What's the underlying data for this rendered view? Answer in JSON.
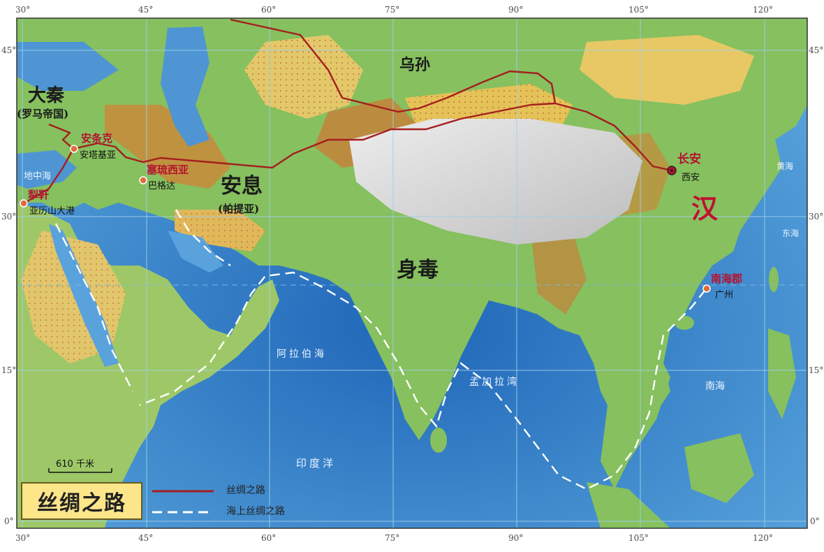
{
  "map": {
    "title": "丝绸之路",
    "legend": [
      {
        "label": "丝绸之路",
        "style": "solid",
        "color": "#a51e1e"
      },
      {
        "label": "海上丝绸之路",
        "style": "dashed",
        "color": "#ffffff"
      }
    ],
    "scale_bar": "610 千米",
    "longitude_ticks": [
      "30°",
      "45°",
      "60°",
      "75°",
      "90°",
      "105°",
      "120°"
    ],
    "latitude_ticks": [
      "45°",
      "30°",
      "15°",
      "0°"
    ],
    "empires": {
      "daqin": "大秦",
      "daqin_sub": "(罗马帝国)",
      "wusun": "乌孙",
      "anxi": "安息",
      "anxi_sub": "(帕提亚)",
      "shendu": "身毒",
      "han": "汉"
    },
    "cities": {
      "anchao": "安条克",
      "anchao_modern": "安塔基亚",
      "sailiu": "塞琉西亚",
      "sailiu_modern": "巴格达",
      "lixuan": "犁靬",
      "lixuan_modern": "亚历山大港",
      "changan": "长安",
      "changan_modern": "西安",
      "nanhai": "南海郡",
      "nanhai_modern": "广州"
    },
    "seas": {
      "mediterranean": "地中海",
      "arabian": "阿拉伯海",
      "bengal": "孟加拉湾",
      "indian": "印度洋",
      "south_china": "南海",
      "yellow": "黄海",
      "east_china": "东海"
    },
    "colors": {
      "ocean": "#3f86c9",
      "land_green": "#7cbd5a",
      "land_yellow": "#e9c35a",
      "mountain": "#c98a3b",
      "plateau": "#d7d7d7",
      "route": "#a51e1e"
    }
  }
}
